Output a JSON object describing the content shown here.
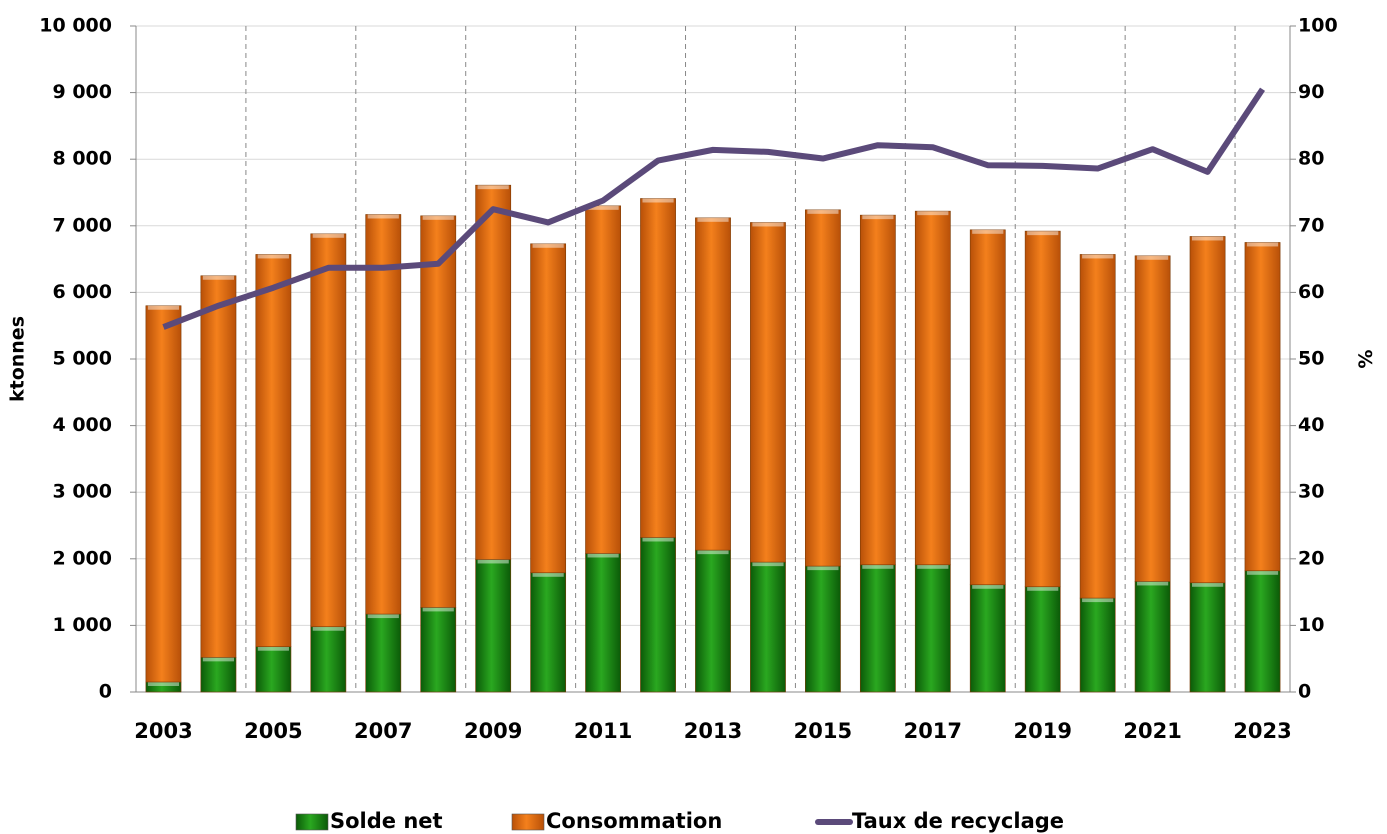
{
  "chart_data": {
    "type": "bar",
    "stacked": true,
    "categories": [
      "2003",
      null,
      "2005",
      null,
      "2007",
      null,
      "2009",
      null,
      "2011",
      null,
      "2013",
      null,
      "2015",
      null,
      "2017",
      null,
      "2019",
      null,
      "2021",
      null,
      "2023"
    ],
    "y_label": "ktonnes",
    "y2_label": "%",
    "series": [
      {
        "name": "Solde net",
        "type": "bar",
        "color": "#1a8c12",
        "values": [
          150,
          520,
          680,
          980,
          1170,
          1270,
          1990,
          1790,
          2080,
          2320,
          2130,
          1950,
          1890,
          1910,
          1910,
          1610,
          1580,
          1410,
          1660,
          1640,
          1820
        ]
      },
      {
        "name": "Consommation",
        "type": "bar",
        "color": "#f07818",
        "values": [
          5650,
          5730,
          5890,
          5900,
          6000,
          5880,
          5620,
          4940,
          5220,
          5090,
          4990,
          5100,
          5350,
          5250,
          5310,
          5330,
          5340,
          5160,
          4890,
          5200,
          4930
        ]
      },
      {
        "name": "Taux de recyclage",
        "type": "line",
        "axis": "y2",
        "color": "#5b4a7a",
        "values": [
          54.8,
          58,
          60.7,
          63.7,
          63.7,
          64.3,
          72.5,
          70.5,
          73.8,
          79.8,
          81.4,
          81.1,
          80.1,
          82.1,
          81.8,
          79.1,
          79.0,
          78.6,
          81.5,
          78.1,
          90.5
        ]
      }
    ],
    "ylim": [
      0,
      10000
    ],
    "yticks": [
      0,
      {
        "value": 1000,
        "label": "1 000"
      },
      {
        "value": 2000,
        "label": "2 000"
      },
      {
        "value": 3000,
        "label": "3 000"
      },
      {
        "value": 4000,
        "label": "4 000"
      },
      {
        "value": 5000,
        "label": "5 000"
      },
      {
        "value": 6000,
        "label": "6 000"
      },
      {
        "value": 7000,
        "label": "7 000"
      },
      {
        "value": 8000,
        "label": "8 000"
      },
      {
        "value": 9000,
        "label": "9 000"
      },
      {
        "value": 10000,
        "label": "10 000"
      }
    ],
    "y2lim": [
      0,
      100
    ],
    "y2ticks": [
      0,
      10,
      20,
      30,
      40,
      50,
      60,
      70,
      80,
      90,
      100
    ],
    "grid": true,
    "legend": "bottom"
  }
}
